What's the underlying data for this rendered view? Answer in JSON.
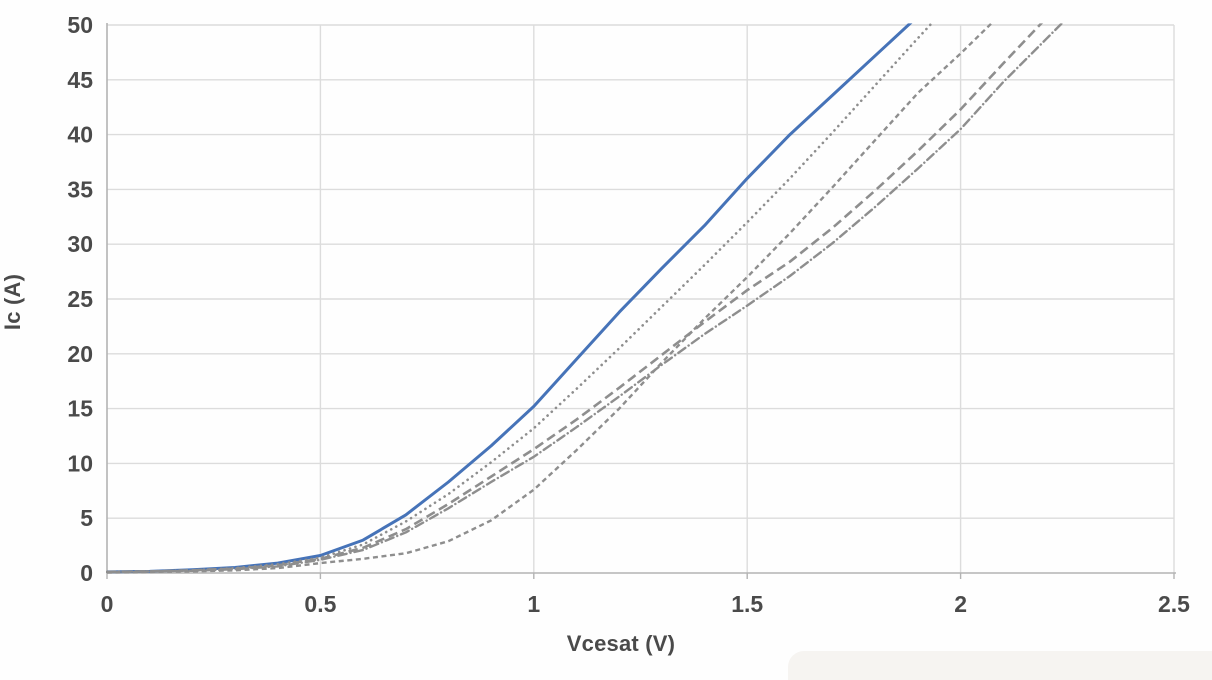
{
  "chart_data": {
    "type": "line",
    "title": "",
    "xlabel": "Vcesat (V)",
    "ylabel": "Ic (A)",
    "xlim": [
      0,
      2.5
    ],
    "ylim": [
      0,
      50
    ],
    "grid": true,
    "legend_position": "none",
    "x_ticks": [
      0,
      0.5,
      1,
      1.5,
      2,
      2.5
    ],
    "x_tick_labels": [
      "0",
      "0.5",
      "1",
      "1.5",
      "2",
      "2.5"
    ],
    "y_ticks": [
      0,
      5,
      10,
      15,
      20,
      25,
      30,
      35,
      40,
      45,
      50
    ],
    "y_tick_labels": [
      "0",
      "5",
      "10",
      "15",
      "20",
      "25",
      "30",
      "35",
      "40",
      "45",
      "50"
    ],
    "x": [
      0,
      0.1,
      0.2,
      0.3,
      0.4,
      0.5,
      0.6,
      0.7,
      0.8,
      0.9,
      1.0,
      1.1,
      1.2,
      1.3,
      1.4,
      1.5,
      1.6,
      1.7,
      1.8,
      1.9,
      2.0,
      2.1,
      2.2,
      2.3
    ],
    "series": [
      {
        "name": "curve-1-solid-blue",
        "style": "solid",
        "color": "#4673b8",
        "values": [
          0.1,
          0.15,
          0.3,
          0.5,
          0.9,
          1.6,
          3.0,
          5.3,
          8.3,
          11.6,
          15.2,
          19.5,
          23.8,
          27.8,
          31.7,
          36.0,
          40.0,
          43.6,
          47.2,
          50.8
        ]
      },
      {
        "name": "curve-2-dotted-gray",
        "style": "dotted",
        "color": "#8e8e8e",
        "values": [
          0.1,
          0.15,
          0.25,
          0.45,
          0.8,
          1.4,
          2.6,
          4.7,
          7.2,
          10.1,
          13.2,
          16.8,
          20.5,
          24.3,
          28.1,
          32.0,
          36.0,
          40.2,
          44.5,
          48.8,
          53.0
        ]
      },
      {
        "name": "curve-3-short-dash-gray",
        "style": "short-dash",
        "color": "#8e8e8e",
        "values": [
          0.05,
          0.1,
          0.15,
          0.25,
          0.45,
          0.9,
          1.3,
          1.8,
          2.9,
          4.8,
          7.6,
          11.2,
          15.0,
          19.2,
          23.2,
          27.0,
          31.0,
          35.2,
          39.5,
          43.8,
          47.4,
          51.2
        ]
      },
      {
        "name": "curve-4-long-dash-gray",
        "style": "long-dash",
        "color": "#8e8e8e",
        "values": [
          0.1,
          0.15,
          0.25,
          0.4,
          0.7,
          1.3,
          2.3,
          4.0,
          6.3,
          8.8,
          11.3,
          14.0,
          16.9,
          19.9,
          22.9,
          25.8,
          28.4,
          31.5,
          34.9,
          38.5,
          42.3,
          46.5,
          50.6
        ]
      },
      {
        "name": "curve-5-dash-dot-gray",
        "style": "dash-dot",
        "color": "#8e8e8e",
        "values": [
          0.1,
          0.15,
          0.2,
          0.35,
          0.6,
          1.2,
          2.1,
          3.7,
          5.9,
          8.3,
          10.6,
          13.3,
          16.1,
          19.0,
          21.8,
          24.4,
          27.1,
          30.1,
          33.4,
          36.9,
          40.5,
          44.8,
          48.7,
          52.6
        ]
      }
    ],
    "colors": {
      "gridline": "#dcdcdc",
      "axis_line": "#b3b3b3",
      "tick_text": "#4a4a4a",
      "background": "#fefefe"
    }
  }
}
